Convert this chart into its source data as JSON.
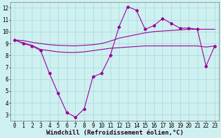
{
  "xlabel": "Windchill (Refroidissement éolien,°C)",
  "background_color": "#cff0f0",
  "grid_color": "#aadddd",
  "line_color": "#990099",
  "x_main": [
    0,
    1,
    2,
    3,
    4,
    5,
    6,
    7,
    8,
    9,
    10,
    11,
    12,
    13,
    14,
    15,
    16,
    17,
    18,
    19,
    20,
    21,
    22,
    23
  ],
  "y_main": [
    9.3,
    9.0,
    8.8,
    8.4,
    6.5,
    4.8,
    3.2,
    2.8,
    3.5,
    6.2,
    6.5,
    8.0,
    10.4,
    12.1,
    11.8,
    10.2,
    10.5,
    11.1,
    10.7,
    10.3,
    10.3,
    10.2,
    7.1,
    8.8
  ],
  "y_trend1": [
    9.3,
    9.25,
    9.1,
    9.0,
    8.9,
    8.85,
    8.82,
    8.8,
    8.85,
    8.9,
    9.0,
    9.2,
    9.45,
    9.6,
    9.75,
    9.9,
    10.0,
    10.05,
    10.1,
    10.15,
    10.2,
    10.2,
    10.2,
    10.2
  ],
  "y_trend2": [
    9.3,
    9.05,
    8.85,
    8.5,
    8.4,
    8.3,
    8.25,
    8.25,
    8.3,
    8.4,
    8.5,
    8.6,
    8.65,
    8.7,
    8.75,
    8.8,
    8.8,
    8.8,
    8.8,
    8.8,
    8.8,
    8.8,
    8.7,
    8.8
  ],
  "xlim": [
    -0.5,
    23.5
  ],
  "ylim": [
    2.5,
    12.5
  ],
  "yticks": [
    3,
    4,
    5,
    6,
    7,
    8,
    9,
    10,
    11,
    12
  ],
  "xticks": [
    0,
    1,
    2,
    3,
    4,
    5,
    6,
    7,
    8,
    9,
    10,
    11,
    12,
    13,
    14,
    15,
    16,
    17,
    18,
    19,
    20,
    21,
    22,
    23
  ],
  "tick_fontsize": 5.5,
  "xlabel_fontsize": 6.5
}
